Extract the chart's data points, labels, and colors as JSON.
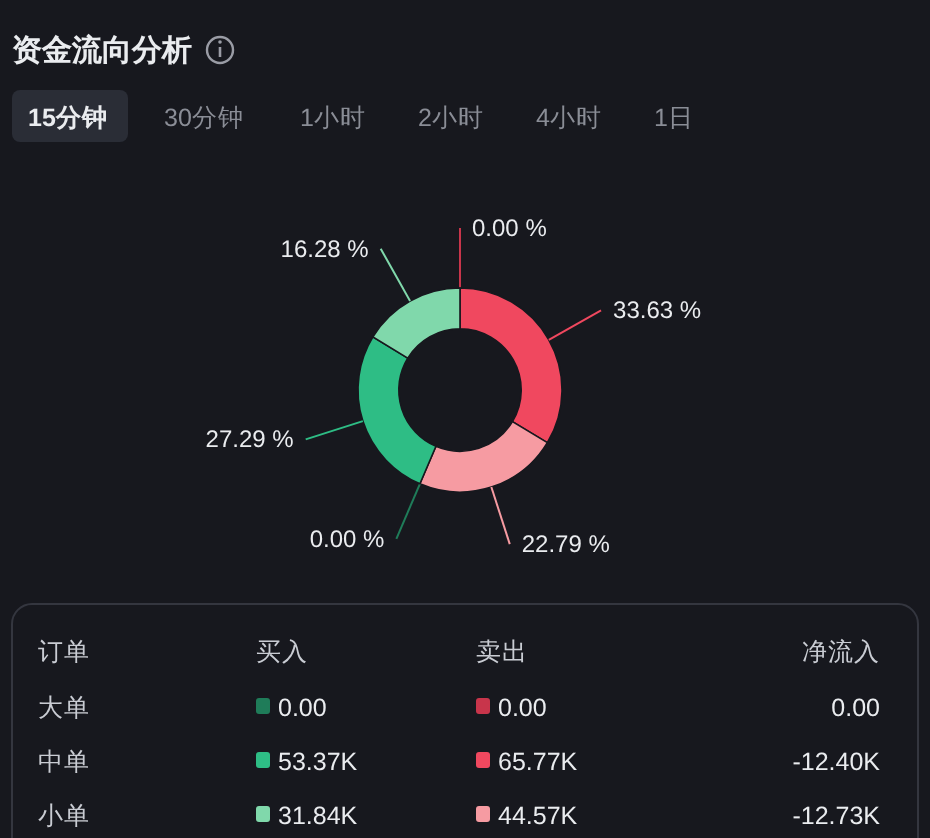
{
  "chart_data": [
    {
      "type": "donut",
      "title": "资金流向分析",
      "annotations": [
        "15分钟",
        "30分钟",
        "1小时",
        "2小时",
        "4小时",
        "1日"
      ],
      "categories": [
        null,
        null,
        null,
        null,
        null,
        null
      ],
      "values": [
        0.0,
        33.63,
        22.79,
        0.0,
        27.29,
        16.28
      ],
      "colors": [
        "#c8354b",
        "#f0485f",
        "#f69ba2",
        "#1f7c59",
        "#2ebd85",
        "#80d8ab"
      ],
      "value_labels": [
        "0.00 %",
        "33.63 %",
        "22.79 %",
        "0.00 %",
        "27.29 %",
        "16.28 %"
      ]
    },
    {
      "type": "other",
      "annotations": [
        "订单",
        "净流入"
      ],
      "categories": [
        "大单",
        "中单",
        "小单"
      ],
      "series": [
        {
          "name": "买入",
          "colors": [
            "#1f7c59",
            "#2ebd85",
            "#80d8ab"
          ],
          "values": [
            0.0,
            53.37,
            31.84
          ],
          "value_labels": [
            "0.00",
            "53.37K",
            "31.84K"
          ]
        },
        {
          "name": "卖出",
          "colors": [
            "#c8354b",
            "#f0485f",
            "#f69ba2"
          ],
          "values": [
            0.0,
            65.77,
            44.57
          ],
          "value_labels": [
            "0.00",
            "65.77K",
            "44.57K"
          ]
        },
        {
          "values": [
            0.0,
            -12.4,
            -12.73
          ],
          "value_labels": [
            "0.00",
            "-12.40K",
            "-12.73K"
          ]
        }
      ]
    }
  ]
}
